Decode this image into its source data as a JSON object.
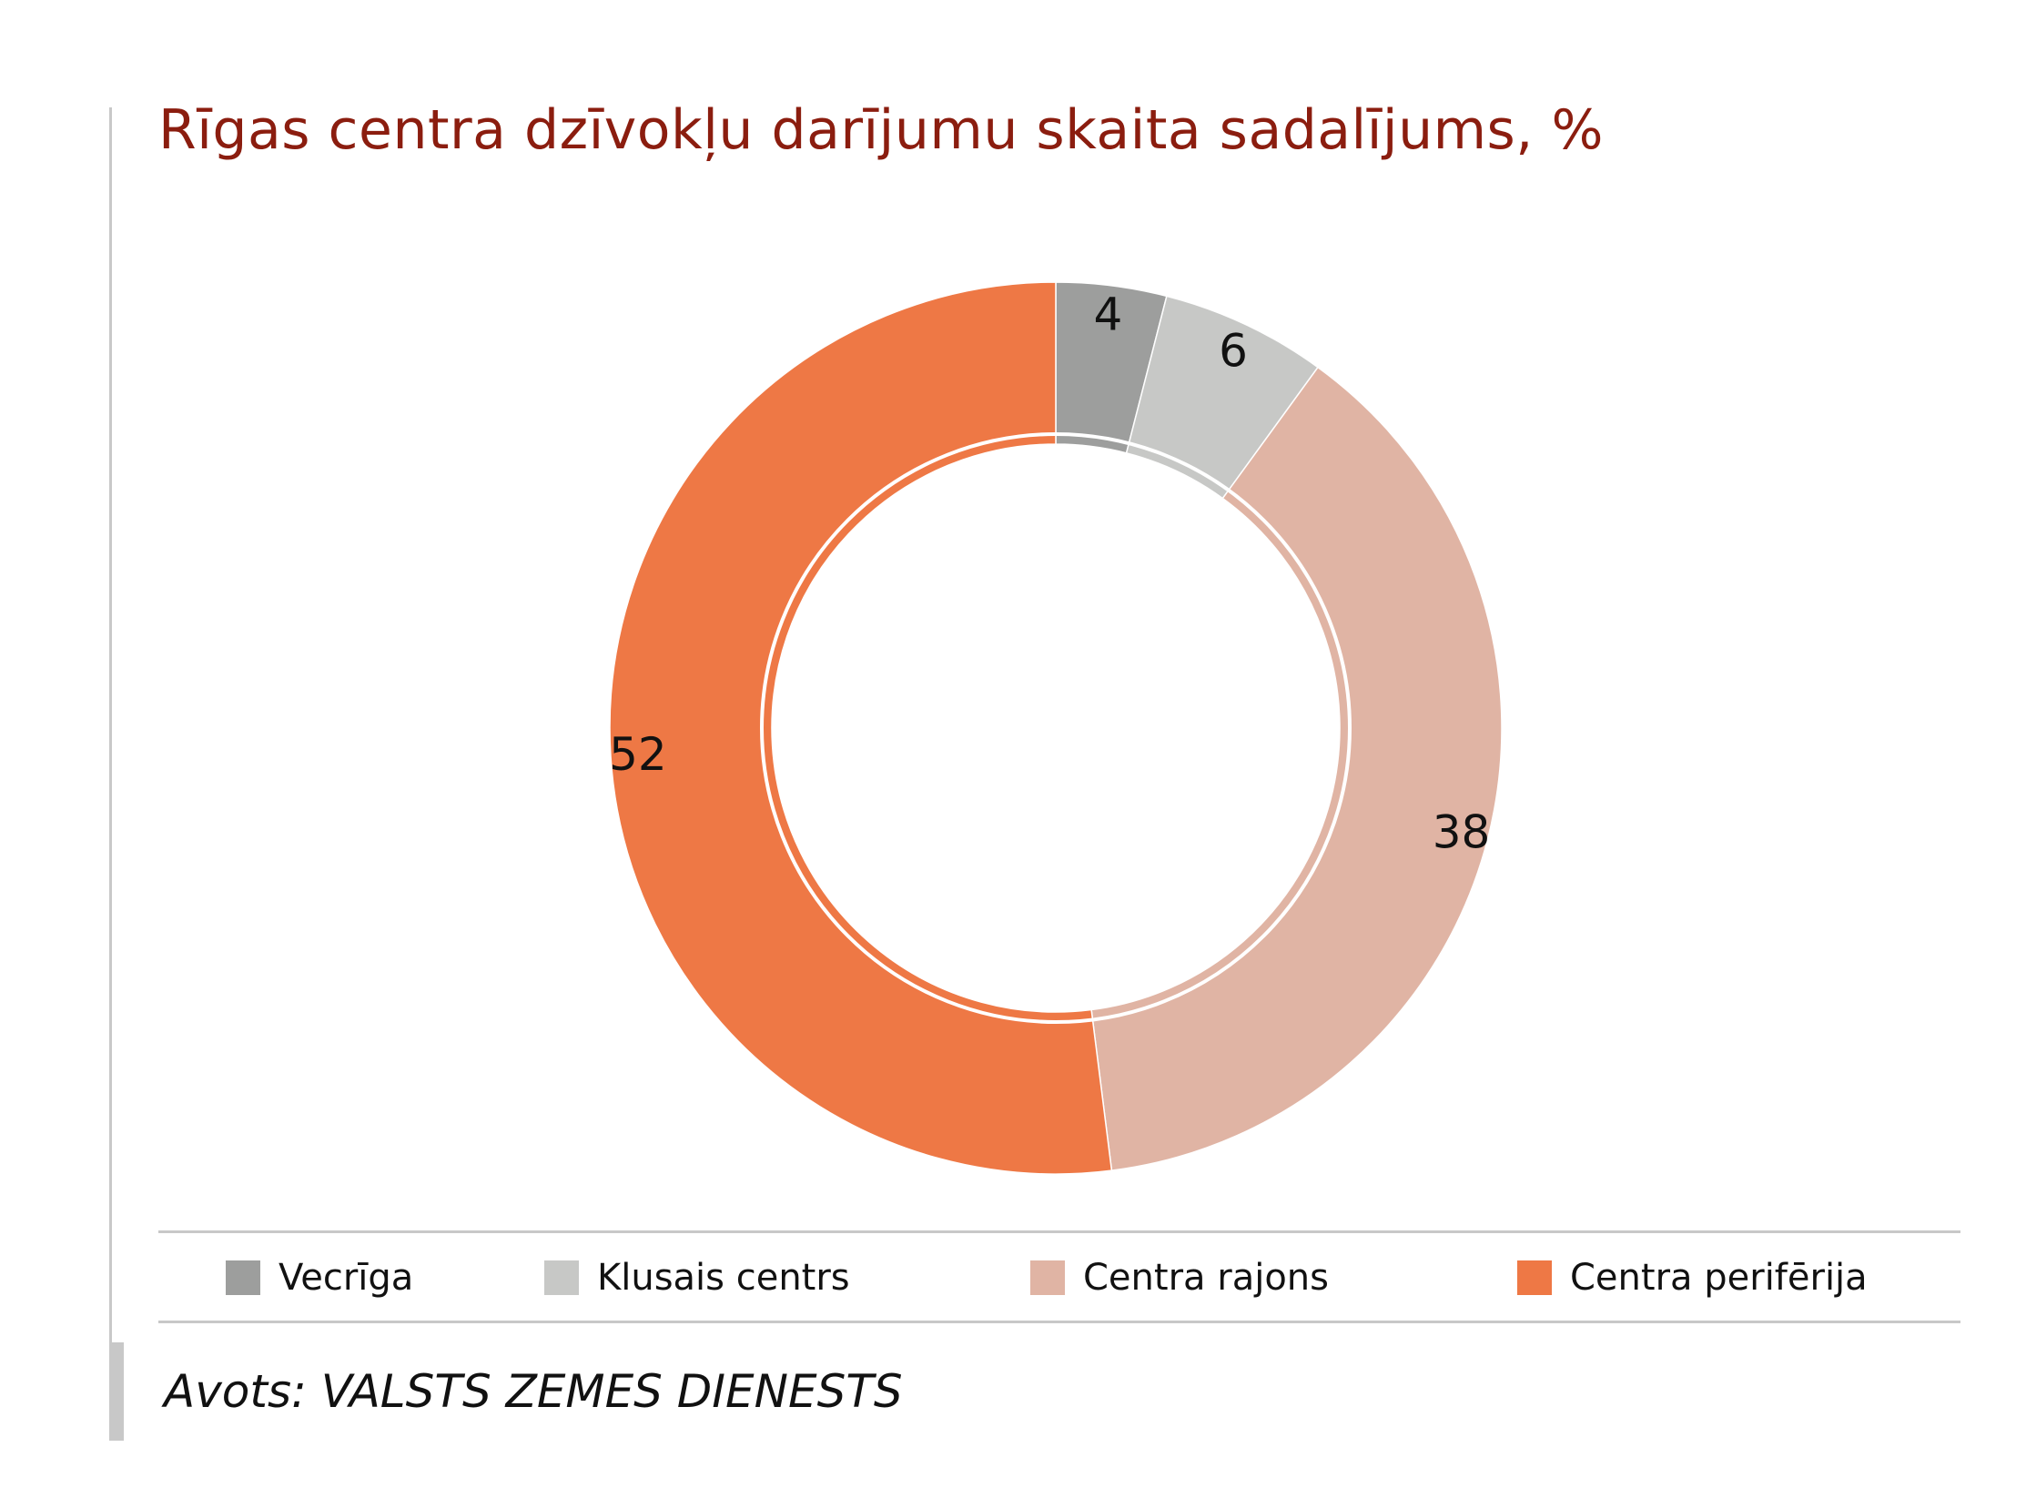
{
  "chart_data": {
    "type": "pie",
    "variant": "donut",
    "title": "Rīgas centra dzīvokļu darījumu skaita sadalījums, %",
    "categories": [
      "Vecrīga",
      "Klusais centrs",
      "Centra rajons",
      "Centra perifērija"
    ],
    "values": [
      4,
      6,
      38,
      52
    ],
    "data_labels": [
      "4",
      "6",
      "38",
      "52"
    ],
    "colors": [
      "#9d9e9d",
      "#c7c8c6",
      "#e0b4a4",
      "#ee7845"
    ],
    "legend_position": "bottom",
    "start_angle": "top, clockwise"
  },
  "source": {
    "prefix": "Avots:",
    "name": "VALSTS ZEMES DIENESTS"
  }
}
